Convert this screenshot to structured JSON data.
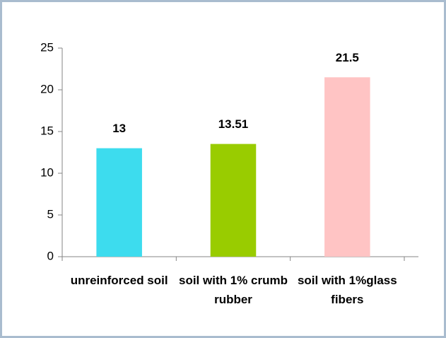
{
  "chart_data": {
    "type": "bar",
    "categories": [
      "unreinforced soil",
      "soil with 1% crumb rubber",
      "soil with 1%glass fibers"
    ],
    "values": [
      13,
      13.51,
      21.5
    ],
    "colors": [
      "#3ddcee",
      "#99cc00",
      "#ffc4c4"
    ],
    "ylim": [
      0,
      25
    ],
    "yticks": [
      0,
      5,
      10,
      15,
      20,
      25
    ],
    "grid": false
  }
}
